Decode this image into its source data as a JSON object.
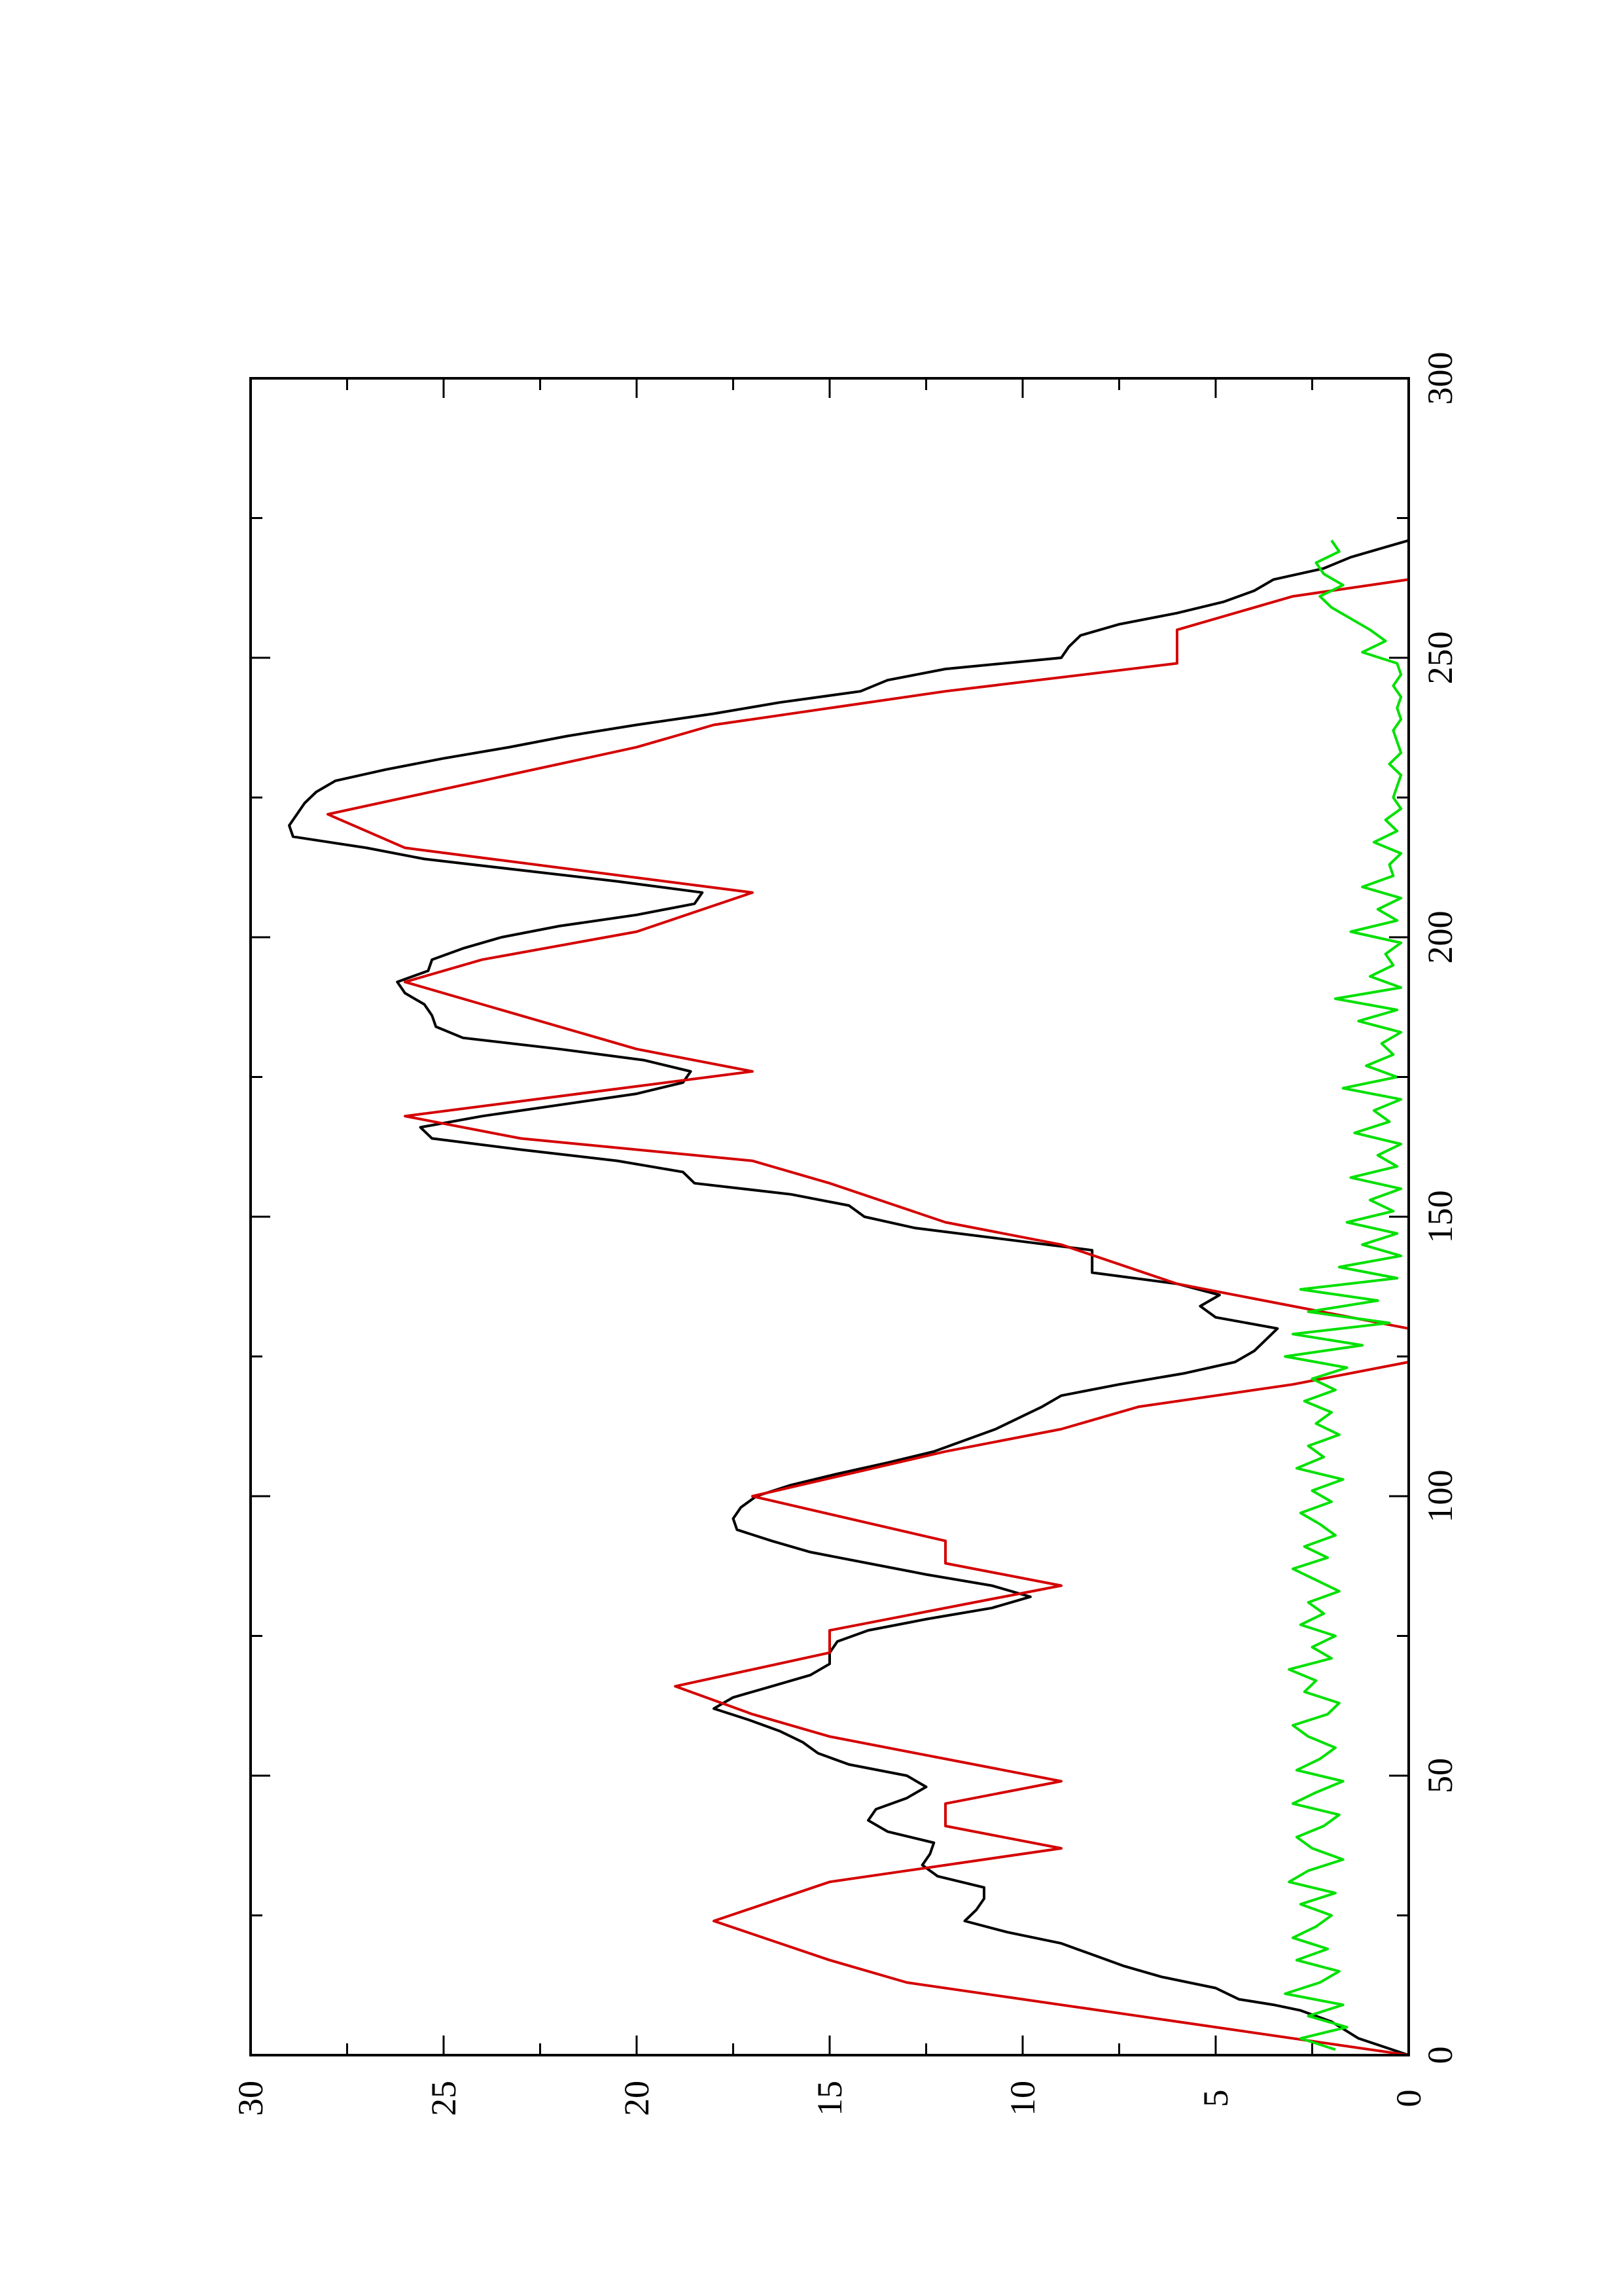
{
  "chart_data": {
    "type": "line",
    "orientation": "rotated-90-counterclockwise",
    "title": "",
    "xlabel": "",
    "ylabel": "",
    "xlim": [
      0,
      300
    ],
    "ylim": [
      0,
      30
    ],
    "x_ticks": [
      0,
      50,
      100,
      150,
      200,
      250,
      300
    ],
    "y_ticks": [
      0,
      5,
      10,
      15,
      20,
      25,
      30
    ],
    "grid": false,
    "legend": "none",
    "series": [
      {
        "color": "#000000",
        "x": [
          0,
          3,
          6,
          8,
          9,
          10,
          12,
          14,
          16,
          18,
          20,
          22,
          24,
          26,
          28,
          30,
          32,
          34,
          36,
          38,
          40,
          42,
          44,
          46,
          48,
          50,
          52,
          54,
          56,
          58,
          60,
          62,
          64,
          66,
          68,
          70,
          72,
          74,
          76,
          78,
          80,
          82,
          84,
          86,
          88,
          90,
          92,
          94,
          96,
          98,
          100,
          102,
          104,
          106,
          108,
          110,
          112,
          114,
          116,
          118,
          120,
          122,
          124,
          126,
          128,
          130,
          132,
          134,
          136,
          138,
          140,
          142,
          144,
          146,
          148,
          150,
          152,
          154,
          156,
          158,
          160,
          162,
          164,
          166,
          168,
          170,
          172,
          174,
          176,
          178,
          180,
          182,
          184,
          186,
          188,
          190,
          192,
          194,
          196,
          198,
          200,
          202,
          204,
          206,
          208,
          210,
          212,
          214,
          216,
          218,
          220,
          222,
          224,
          226,
          228,
          230,
          232,
          234,
          236,
          238,
          240,
          242,
          244,
          246,
          248,
          250,
          252,
          254,
          256,
          258,
          260,
          262,
          264,
          266,
          268,
          270,
          271
        ],
        "values": [
          0,
          1.3,
          2,
          2.8,
          3.5,
          4.4,
          5,
          6.4,
          7.4,
          8.2,
          9,
          10.4,
          11.5,
          11.2,
          11.0,
          11.0,
          12.2,
          12.6,
          12.4,
          12.3,
          13.5,
          14.0,
          13.8,
          13.0,
          12.5,
          13.0,
          14.5,
          15.3,
          15.7,
          16.3,
          17.1,
          18.0,
          17.5,
          16.5,
          15.5,
          15.0,
          15.0,
          14.8,
          14.0,
          12.5,
          10.8,
          9.8,
          10.8,
          12.5,
          14.0,
          15.5,
          16.5,
          17.4,
          17.5,
          17.3,
          16.9,
          16.0,
          14.8,
          13.5,
          12.3,
          11.5,
          10.7,
          10.1,
          9.5,
          9.0,
          7.5,
          5.8,
          4.5,
          4.0,
          3.7,
          3.4,
          5.0,
          5.4,
          4.9,
          6.0,
          8.2,
          8.2,
          8.2,
          10.5,
          12.8,
          14.1,
          14.5,
          16.0,
          18.5,
          18.8,
          20.5,
          23.0,
          25.3,
          25.6,
          24.0,
          22.0,
          20.0,
          18.8,
          18.6,
          19.8,
          22.0,
          24.5,
          25.2,
          25.3,
          25.5,
          26.0,
          26.2,
          25.4,
          25.3,
          24.5,
          23.5,
          22.0,
          20.0,
          18.5,
          18.3,
          20.5,
          23.0,
          25.5,
          27.0,
          28.9,
          29.0,
          28.8,
          28.6,
          28.3,
          27.8,
          26.5,
          25.0,
          23.3,
          21.8,
          20.0,
          18.0,
          16.3,
          14.2,
          13.5,
          12.0,
          9.0,
          8.8,
          8.5,
          7.5,
          6.0,
          4.8,
          4.0,
          3.5,
          2.2,
          1.5,
          0.5,
          0
        ]
      },
      {
        "color": "#d40000",
        "x": [
          0,
          7,
          7,
          13,
          13,
          17,
          17,
          24,
          24,
          31,
          31,
          33,
          33,
          37,
          37,
          41,
          41,
          45,
          45,
          49,
          49,
          53,
          53,
          57,
          57,
          61,
          61,
          66,
          66,
          72,
          72,
          76,
          76,
          84,
          84,
          88,
          88,
          92,
          92,
          100,
          100,
          108,
          108,
          112,
          112,
          116,
          116,
          120,
          120,
          124,
          124,
          130,
          130,
          134,
          134,
          138,
          138,
          145,
          145,
          149,
          149,
          156,
          156,
          160,
          160,
          164,
          164,
          168,
          168,
          176,
          176,
          180,
          180,
          188,
          188,
          192,
          192,
          196,
          196,
          201,
          201,
          208,
          208,
          216,
          216,
          222,
          222,
          228,
          228,
          234,
          234,
          238,
          238,
          244,
          244,
          249,
          249,
          255,
          255,
          261,
          261,
          264
        ],
        "values": [
          0,
          7,
          7,
          13,
          13,
          15,
          15,
          18,
          18,
          15,
          15,
          13,
          13,
          9,
          9,
          12,
          12,
          12,
          12,
          9,
          9,
          12,
          12,
          15,
          15,
          17,
          17,
          19,
          19,
          15,
          15,
          15,
          15,
          9,
          9,
          12,
          12,
          12,
          12,
          17,
          17,
          12,
          12,
          9,
          9,
          7,
          7,
          3,
          3,
          0,
          0,
          0,
          0,
          3,
          3,
          6,
          6,
          9,
          9,
          12,
          12,
          15,
          15,
          17,
          17,
          23,
          23,
          26,
          26,
          17,
          17,
          20,
          20,
          24,
          24,
          26,
          26,
          24,
          24,
          20,
          20,
          17,
          17,
          26,
          26,
          28,
          28,
          24,
          24,
          20,
          20,
          18,
          18,
          12,
          12,
          6,
          6,
          6,
          6,
          3,
          3,
          0
        ]
      },
      {
        "color": "#00e000",
        "x": [
          1,
          3,
          5,
          7,
          9,
          11,
          13,
          15,
          17,
          19,
          21,
          23,
          25,
          27,
          29,
          31,
          33,
          35,
          37,
          39,
          41,
          43,
          45,
          47,
          49,
          51,
          53,
          55,
          57,
          59,
          61,
          63,
          65,
          67,
          69,
          71,
          73,
          75,
          77,
          79,
          81,
          83,
          85,
          87,
          89,
          91,
          93,
          95,
          97,
          99,
          101,
          103,
          105,
          107,
          109,
          111,
          113,
          115,
          117,
          119,
          121,
          123,
          125,
          127,
          129,
          131,
          133,
          135,
          137,
          139,
          141,
          143,
          145,
          147,
          149,
          151,
          153,
          155,
          157,
          159,
          161,
          163,
          165,
          167,
          169,
          171,
          173,
          175,
          177,
          179,
          181,
          183,
          185,
          187,
          189,
          191,
          193,
          195,
          197,
          199,
          201,
          203,
          205,
          207,
          209,
          211,
          213,
          215,
          217,
          219,
          221,
          223,
          225,
          227,
          229,
          231,
          233,
          235,
          237,
          239,
          241,
          243,
          245,
          247,
          249,
          251,
          253,
          255,
          257,
          259,
          261,
          263,
          265,
          267,
          269,
          271
        ],
        "values": [
          1.9,
          2.8,
          1.6,
          2.6,
          1.7,
          3.2,
          2.3,
          1.8,
          2.9,
          2.1,
          3.0,
          2.4,
          2.0,
          2.8,
          1.9,
          3.1,
          2.6,
          1.7,
          2.5,
          2.9,
          2.2,
          1.8,
          3.0,
          2.4,
          1.7,
          2.9,
          2.3,
          1.9,
          2.6,
          3.0,
          2.1,
          1.8,
          2.7,
          2.4,
          3.1,
          2.0,
          2.5,
          1.9,
          2.8,
          2.2,
          2.6,
          1.8,
          2.4,
          3.0,
          2.1,
          2.7,
          1.9,
          2.3,
          2.8,
          2.0,
          2.5,
          1.7,
          2.9,
          2.2,
          2.6,
          1.8,
          2.4,
          2.0,
          2.7,
          1.9,
          2.5,
          1.6,
          3.2,
          1.2,
          3.0,
          0.5,
          2.6,
          0.8,
          2.8,
          0.3,
          1.8,
          0.2,
          1.2,
          0.3,
          1.6,
          0.4,
          1.0,
          0.2,
          1.5,
          0.3,
          0.8,
          0.2,
          1.4,
          0.5,
          0.9,
          0.2,
          1.7,
          0.3,
          1.1,
          0.4,
          0.7,
          0.2,
          1.3,
          0.3,
          1.9,
          0.2,
          1.0,
          0.4,
          0.6,
          0.2,
          1.5,
          0.3,
          0.8,
          0.2,
          1.2,
          0.4,
          0.5,
          0.2,
          0.9,
          0.3,
          0.6,
          0.2,
          0.4,
          0.3,
          0.2,
          0.5,
          0.2,
          0.3,
          0.4,
          0.2,
          0.3,
          0.2,
          0.4,
          0.2,
          0.3,
          1.2,
          0.6,
          1.0,
          1.5,
          2.0,
          2.3,
          1.7,
          2.2,
          2.4,
          1.8,
          2.0
        ]
      }
    ]
  }
}
